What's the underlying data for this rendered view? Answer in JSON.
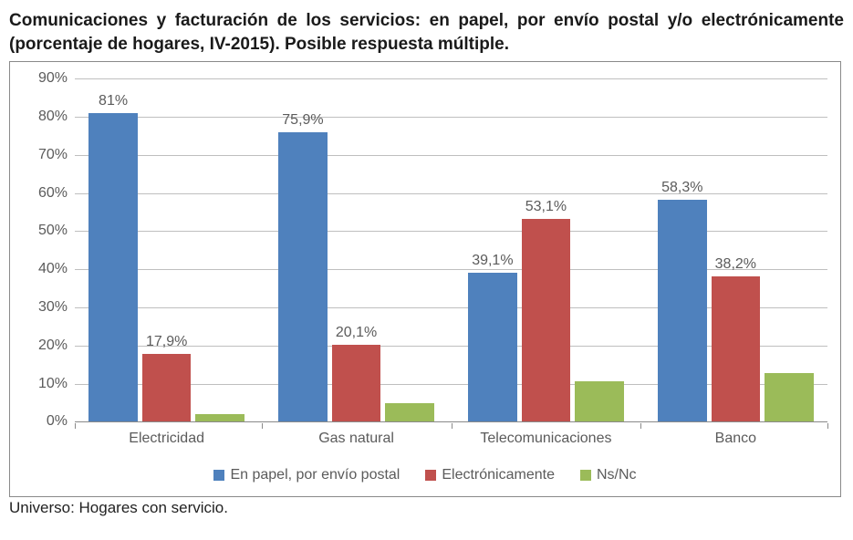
{
  "title": "Comunicaciones y facturación de los servicios: en papel, por envío postal y/o electrónicamente (porcentaje de hogares, IV-2015). Posible respuesta múltiple.",
  "footnote": "Universo: Hogares con servicio.",
  "chart": {
    "type": "bar",
    "ylim": [
      0,
      90
    ],
    "ytick_step": 10,
    "ytick_suffix": "%",
    "grid_color": "#bfbfbf",
    "axis_color": "#8a8a8a",
    "background_color": "#ffffff",
    "label_fontsize": 16,
    "label_color": "#5b5b5b",
    "bar_width_pct": 6.5,
    "bar_gap_pct": 0.6,
    "group_gap_pct": 4.5,
    "categories": [
      "Electricidad",
      "Gas natural",
      "Telecomunicaciones",
      "Banco"
    ],
    "series": [
      {
        "name": "En papel, por envío postal",
        "color": "#4f81bd"
      },
      {
        "name": "Electrónicamente",
        "color": "#c0504d"
      },
      {
        "name": "Ns/Nc",
        "color": "#9bbb59"
      }
    ],
    "values": [
      [
        81.0,
        17.9,
        2.0
      ],
      [
        75.9,
        20.1,
        4.8
      ],
      [
        39.1,
        53.1,
        10.5
      ],
      [
        58.3,
        38.2,
        12.8
      ]
    ],
    "value_labels": [
      [
        "81%",
        "17,9%",
        ""
      ],
      [
        "75,9%",
        "20,1%",
        ""
      ],
      [
        "39,1%",
        "53,1%",
        ""
      ],
      [
        "58,3%",
        "38,2%",
        ""
      ]
    ]
  }
}
